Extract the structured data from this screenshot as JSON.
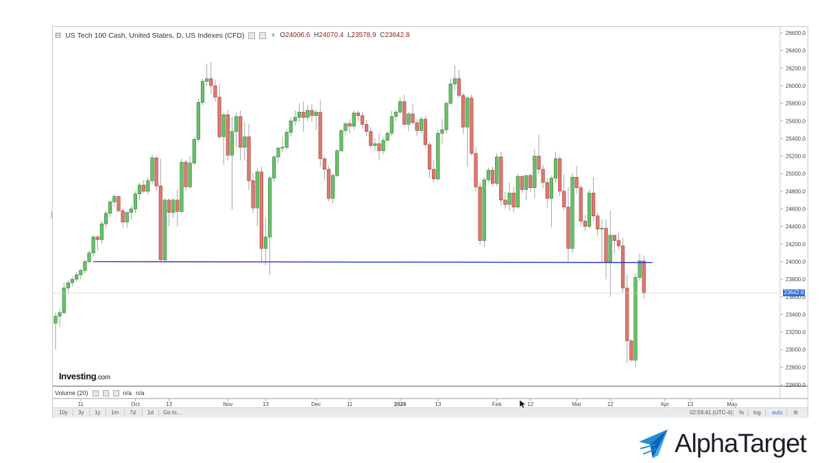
{
  "header": {
    "title": "US Tech 100 Cash, United States, D, US Indexes (CFD)",
    "ohlc": {
      "o_label": "O",
      "o": "24006.6",
      "h_label": "H",
      "h": "24070.4",
      "l_label": "L",
      "l": "23578.9",
      "c_label": "C",
      "c": "23642.8"
    }
  },
  "volume_pane": {
    "label": "Volume (20)",
    "v1": "n/a",
    "v2": "n/a"
  },
  "current_price_label": "23642.8",
  "watermark": {
    "brand_bold": "Investing",
    "brand_suffix": ".com"
  },
  "toolbar": {
    "ranges": [
      "10y",
      "3y",
      "1y",
      "1m",
      "7d",
      "1d"
    ],
    "goto": "Go to...",
    "time": "02:59:41 (UTC-4)",
    "pct": "%",
    "log": "log",
    "auto": "auto"
  },
  "corner_brand": "AlphaTarget",
  "colors": {
    "up": "#4caf50",
    "up_fill": "#6abf6b",
    "down": "#d9534f",
    "down_fill": "#d97b70",
    "support_line": "#2432c8",
    "price_tag": "#2f6fd6"
  },
  "chart_data": {
    "type": "candlestick",
    "title": "US Tech 100 Cash, United States, D, US Indexes (CFD)",
    "y_axis": {
      "ylim": [
        22600,
        26600
      ],
      "ticks": [
        "22600.0",
        "22800.0",
        "23000.0",
        "23200.0",
        "23400.0",
        "23600.0",
        "23800.0",
        "24000.0",
        "24200.0",
        "24400.0",
        "24600.0",
        "24800.0",
        "25000.0",
        "25200.0",
        "25400.0",
        "25600.0",
        "25800.0",
        "26000.0",
        "26200.0",
        "26400.0",
        "26600.0"
      ]
    },
    "x_axis": {
      "labels": [
        {
          "text": "11",
          "idx": 6
        },
        {
          "text": "Oct",
          "idx": 19
        },
        {
          "text": "13",
          "idx": 27
        },
        {
          "text": "Nov",
          "idx": 41
        },
        {
          "text": "13",
          "idx": 50
        },
        {
          "text": "Dec",
          "idx": 62
        },
        {
          "text": "11",
          "idx": 70
        },
        {
          "text": "2026",
          "idx": 82
        },
        {
          "text": "13",
          "idx": 91
        },
        {
          "text": "Feb",
          "idx": 105
        },
        {
          "text": "12",
          "idx": 113
        },
        {
          "text": "Mar",
          "idx": 124
        },
        {
          "text": "12",
          "idx": 132
        },
        {
          "text": "Apr",
          "idx": 145
        },
        {
          "text": "13",
          "idx": 151
        },
        {
          "text": "May",
          "idx": 161
        }
      ]
    },
    "support_level": 24000,
    "last_close": 23642.8,
    "candles": [
      [
        23300,
        23420,
        23000,
        23380
      ],
      [
        23380,
        23470,
        23260,
        23420
      ],
      [
        23420,
        23760,
        23400,
        23700
      ],
      [
        23700,
        23790,
        23650,
        23760
      ],
      [
        23760,
        23830,
        23720,
        23800
      ],
      [
        23800,
        23880,
        23770,
        23850
      ],
      [
        23850,
        23920,
        23800,
        23900
      ],
      [
        23900,
        24020,
        23870,
        24000
      ],
      [
        24000,
        24130,
        23980,
        24100
      ],
      [
        24100,
        24300,
        24060,
        24280
      ],
      [
        24280,
        24300,
        24120,
        24250
      ],
      [
        24250,
        24460,
        24200,
        24430
      ],
      [
        24430,
        24580,
        24380,
        24550
      ],
      [
        24550,
        24700,
        24500,
        24680
      ],
      [
        24680,
        24770,
        24620,
        24740
      ],
      [
        24740,
        24760,
        24560,
        24580
      ],
      [
        24580,
        24600,
        24380,
        24450
      ],
      [
        24450,
        24550,
        24380,
        24560
      ],
      [
        24560,
        24640,
        24480,
        24600
      ],
      [
        24600,
        24800,
        24550,
        24770
      ],
      [
        24770,
        24900,
        24700,
        24870
      ],
      [
        24870,
        24930,
        24780,
        24800
      ],
      [
        24800,
        24960,
        24760,
        24920
      ],
      [
        24920,
        25220,
        24880,
        25180
      ],
      [
        25180,
        25200,
        24800,
        24860
      ],
      [
        24860,
        25170,
        24010,
        24020
      ],
      [
        24020,
        24720,
        24000,
        24700
      ],
      [
        24700,
        24720,
        24400,
        24560
      ],
      [
        24560,
        24720,
        24500,
        24700
      ],
      [
        24700,
        24820,
        24400,
        24570
      ],
      [
        24570,
        25170,
        24550,
        25130
      ],
      [
        25130,
        25160,
        24800,
        24850
      ],
      [
        24850,
        25200,
        24830,
        25120
      ],
      [
        25120,
        25420,
        25100,
        25390
      ],
      [
        25390,
        25850,
        25360,
        25810
      ],
      [
        25810,
        26080,
        25780,
        26050
      ],
      [
        26050,
        26250,
        26000,
        26080
      ],
      [
        26080,
        26270,
        25900,
        26000
      ],
      [
        26000,
        26070,
        25820,
        25870
      ],
      [
        25870,
        26020,
        25390,
        25420
      ],
      [
        25420,
        25700,
        25100,
        25670
      ],
      [
        25670,
        25720,
        25150,
        25210
      ],
      [
        25210,
        25650,
        24590,
        25480
      ],
      [
        25480,
        25700,
        25300,
        25650
      ],
      [
        25650,
        25720,
        25150,
        25300
      ],
      [
        25300,
        25590,
        25150,
        25420
      ],
      [
        25420,
        25570,
        24810,
        24920
      ],
      [
        24920,
        25010,
        24550,
        24610
      ],
      [
        24610,
        25060,
        24400,
        25020
      ],
      [
        25020,
        25080,
        24000,
        24150
      ],
      [
        24150,
        24500,
        23960,
        24280
      ],
      [
        24280,
        24980,
        23850,
        24950
      ],
      [
        24950,
        25210,
        24900,
        25190
      ],
      [
        25190,
        25310,
        25120,
        25290
      ],
      [
        25290,
        25420,
        25240,
        25300
      ],
      [
        25300,
        25510,
        25270,
        25470
      ],
      [
        25470,
        25640,
        25420,
        25600
      ],
      [
        25600,
        25720,
        25550,
        25640
      ],
      [
        25640,
        25800,
        25590,
        25700
      ],
      [
        25700,
        25820,
        25480,
        25640
      ],
      [
        25640,
        25780,
        25600,
        25720
      ],
      [
        25720,
        25790,
        25590,
        25660
      ],
      [
        25660,
        25730,
        25500,
        25700
      ],
      [
        25700,
        25840,
        25080,
        25170
      ],
      [
        25170,
        25200,
        24920,
        25050
      ],
      [
        25050,
        25090,
        24690,
        24720
      ],
      [
        24720,
        25000,
        24660,
        24980
      ],
      [
        24980,
        25280,
        24960,
        25260
      ],
      [
        25260,
        25510,
        25240,
        25490
      ],
      [
        25490,
        25580,
        25440,
        25570
      ],
      [
        25570,
        25620,
        25460,
        25540
      ],
      [
        25540,
        25720,
        25500,
        25690
      ],
      [
        25690,
        25720,
        25600,
        25660
      ],
      [
        25660,
        25700,
        25510,
        25560
      ],
      [
        25560,
        25610,
        25430,
        25480
      ],
      [
        25480,
        25530,
        25300,
        25320
      ],
      [
        25320,
        25400,
        25260,
        25340
      ],
      [
        25340,
        25460,
        25150,
        25260
      ],
      [
        25260,
        25420,
        25220,
        25380
      ],
      [
        25380,
        25480,
        25360,
        25460
      ],
      [
        25460,
        25720,
        25430,
        25650
      ],
      [
        25650,
        25720,
        25600,
        25700
      ],
      [
        25700,
        25870,
        25680,
        25820
      ],
      [
        25820,
        25900,
        25560,
        25560
      ],
      [
        25560,
        25700,
        25480,
        25680
      ],
      [
        25680,
        25790,
        25550,
        25580
      ],
      [
        25580,
        25620,
        25430,
        25490
      ],
      [
        25490,
        25650,
        25460,
        25620
      ],
      [
        25620,
        25660,
        25300,
        25330
      ],
      [
        25330,
        25360,
        24950,
        25050
      ],
      [
        25050,
        25150,
        24900,
        24940
      ],
      [
        24940,
        25500,
        24920,
        25460
      ],
      [
        25460,
        25620,
        25330,
        25500
      ],
      [
        25500,
        25820,
        25460,
        25800
      ],
      [
        25800,
        26080,
        25780,
        26020
      ],
      [
        26020,
        26230,
        25940,
        26080
      ],
      [
        26080,
        26180,
        25860,
        25890
      ],
      [
        25890,
        25920,
        25450,
        25530
      ],
      [
        25530,
        25880,
        25080,
        25860
      ],
      [
        25860,
        25900,
        25200,
        25230
      ],
      [
        25230,
        25300,
        24800,
        24850
      ],
      [
        24850,
        24900,
        24190,
        24240
      ],
      [
        24240,
        24960,
        24160,
        24930
      ],
      [
        24930,
        25070,
        24900,
        25040
      ],
      [
        25040,
        25080,
        24860,
        24890
      ],
      [
        24890,
        25230,
        24860,
        25190
      ],
      [
        25190,
        25250,
        24640,
        24700
      ],
      [
        24700,
        24800,
        24600,
        24650
      ],
      [
        24650,
        24900,
        24580,
        24780
      ],
      [
        24780,
        24860,
        24560,
        24620
      ],
      [
        24620,
        25000,
        24600,
        24970
      ],
      [
        24970,
        24980,
        24780,
        24820
      ],
      [
        24820,
        24980,
        24700,
        24980
      ],
      [
        24980,
        25000,
        24790,
        24840
      ],
      [
        24840,
        25280,
        24720,
        25200
      ],
      [
        25200,
        25440,
        25000,
        25050
      ],
      [
        25050,
        25100,
        24830,
        24900
      ],
      [
        24900,
        24950,
        24610,
        24720
      ],
      [
        24720,
        24980,
        24390,
        24950
      ],
      [
        24950,
        25250,
        24900,
        25170
      ],
      [
        25170,
        25200,
        24750,
        24800
      ],
      [
        24800,
        24990,
        24580,
        24620
      ],
      [
        24620,
        24850,
        24000,
        24150
      ],
      [
        24150,
        25010,
        24100,
        24960
      ],
      [
        24960,
        25090,
        24770,
        24840
      ],
      [
        24840,
        24870,
        24400,
        24460
      ],
      [
        24460,
        24530,
        24350,
        24400
      ],
      [
        24400,
        24820,
        24380,
        24780
      ],
      [
        24780,
        24960,
        24460,
        24520
      ],
      [
        24520,
        24560,
        24290,
        24370
      ],
      [
        24370,
        24480,
        24000,
        24380
      ],
      [
        24380,
        24480,
        23800,
        24000
      ],
      [
        24000,
        24580,
        23600,
        24300
      ],
      [
        24300,
        24290,
        24090,
        24240
      ],
      [
        24240,
        24330,
        24140,
        24180
      ],
      [
        24180,
        24270,
        23650,
        23700
      ],
      [
        23700,
        23850,
        22850,
        23100
      ],
      [
        23100,
        23120,
        22880,
        22880
      ],
      [
        22880,
        23870,
        22800,
        23820
      ],
      [
        23820,
        24090,
        23780,
        24010
      ],
      [
        24006.6,
        24070.4,
        23578.9,
        23642.8
      ]
    ]
  }
}
